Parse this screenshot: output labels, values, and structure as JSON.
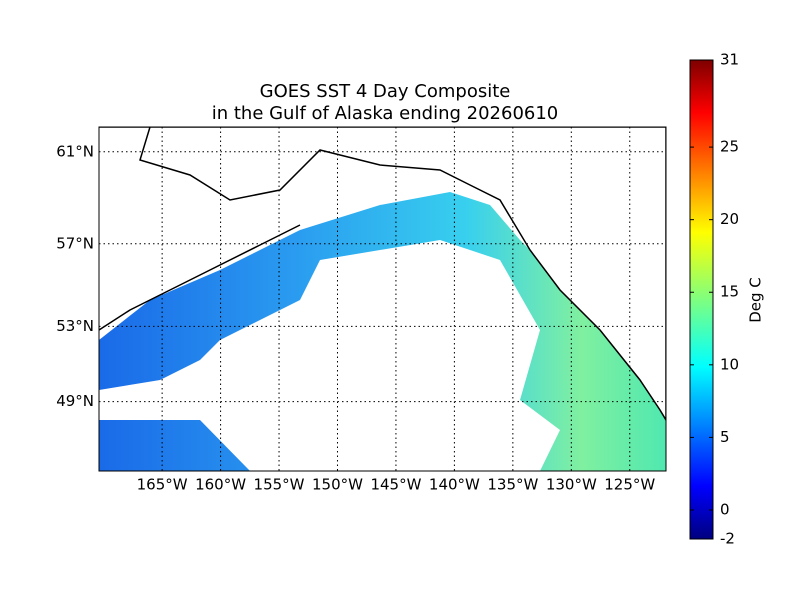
{
  "map": {
    "title": [
      "GOES SST 4 Day Composite",
      "in the Gulf of Alaska ending 20260610"
    ],
    "projection": "mercator",
    "xlim": [
      -170.4,
      -121.9
    ],
    "ylim": [
      45,
      62
    ],
    "xticks": [
      {
        "value": -165,
        "label": "165°W"
      },
      {
        "value": -160,
        "label": "160°W"
      },
      {
        "value": -155,
        "label": "155°W"
      },
      {
        "value": -150,
        "label": "150°W"
      },
      {
        "value": -145,
        "label": "145°W"
      },
      {
        "value": -140,
        "label": "140°W"
      },
      {
        "value": -135,
        "label": "135°W"
      },
      {
        "value": -130,
        "label": "130°W"
      },
      {
        "value": -125,
        "label": "125°W"
      }
    ],
    "yticks": [
      {
        "value": 61,
        "label": "61°N"
      },
      {
        "value": 57,
        "label": "57°N"
      },
      {
        "value": 53,
        "label": "53°N"
      },
      {
        "value": 49,
        "label": "49°N"
      }
    ],
    "grid": true,
    "colorbar": {
      "label": "Deg C",
      "lim": [
        -2,
        31
      ],
      "ticks": [
        -2,
        0,
        5,
        10,
        15,
        20,
        25,
        31
      ]
    }
  }
}
